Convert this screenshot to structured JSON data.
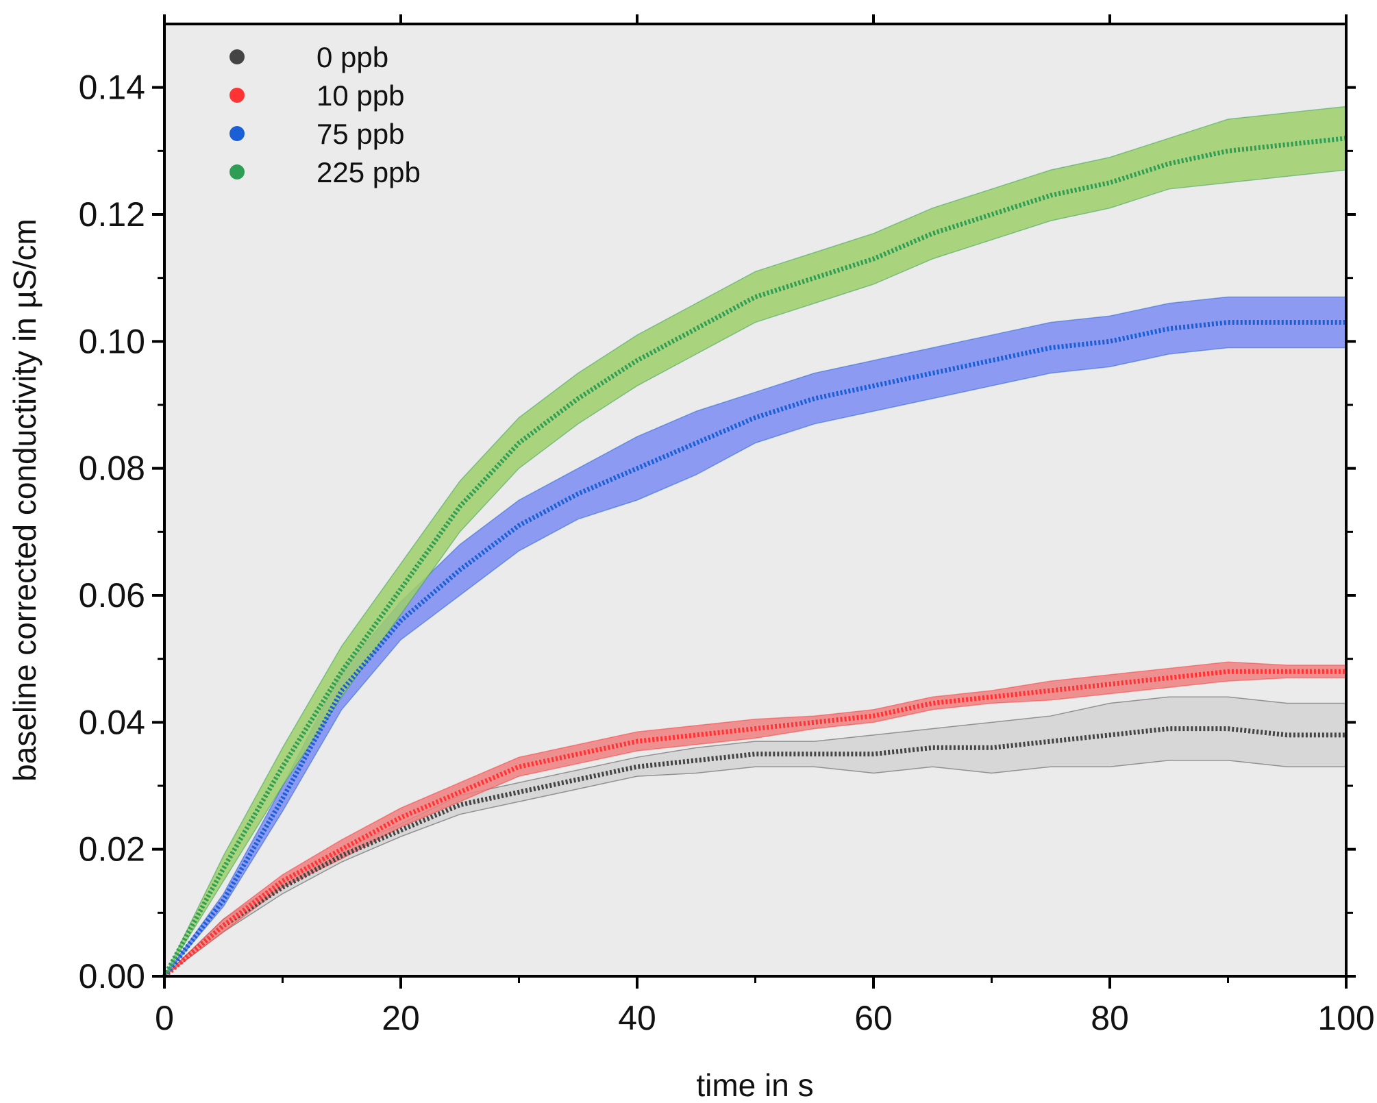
{
  "chart_data": {
    "type": "line",
    "xlabel": "time in s",
    "ylabel": "baseline corrected conductivity in µS/cm",
    "xlim": [
      0,
      100
    ],
    "ylim": [
      0,
      0.15
    ],
    "xticks": [
      0,
      20,
      40,
      60,
      80,
      100
    ],
    "xtick_labels": [
      "0",
      "20",
      "40",
      "60",
      "80",
      "100"
    ],
    "yticks": [
      0,
      0.02,
      0.04,
      0.06,
      0.08,
      0.1,
      0.12,
      0.14
    ],
    "ytick_labels": [
      "0.00",
      "0.02",
      "0.04",
      "0.06",
      "0.08",
      "0.10",
      "0.12",
      "0.14"
    ],
    "grid": false,
    "legend_position": "top-left",
    "series": [
      {
        "name": "0 ppb",
        "color": "#444444",
        "band_color": "#d3d3d3",
        "x": [
          0,
          5,
          10,
          15,
          20,
          25,
          30,
          35,
          40,
          45,
          50,
          55,
          60,
          65,
          70,
          75,
          80,
          85,
          90,
          95,
          100
        ],
        "y": [
          0.0,
          0.008,
          0.014,
          0.019,
          0.023,
          0.027,
          0.029,
          0.031,
          0.033,
          0.034,
          0.035,
          0.035,
          0.035,
          0.036,
          0.036,
          0.037,
          0.038,
          0.039,
          0.039,
          0.038,
          0.038
        ],
        "y_err": [
          0.0,
          0.001,
          0.001,
          0.001,
          0.001,
          0.0015,
          0.0015,
          0.0015,
          0.0015,
          0.002,
          0.002,
          0.002,
          0.003,
          0.003,
          0.004,
          0.004,
          0.005,
          0.005,
          0.005,
          0.005,
          0.005
        ]
      },
      {
        "name": "10 ppb",
        "color": "#ff3333",
        "band_color": "#f08080",
        "x": [
          0,
          5,
          10,
          15,
          20,
          25,
          30,
          35,
          40,
          45,
          50,
          55,
          60,
          65,
          70,
          75,
          80,
          85,
          90,
          95,
          100
        ],
        "y": [
          0.0,
          0.008,
          0.015,
          0.02,
          0.025,
          0.029,
          0.033,
          0.035,
          0.037,
          0.038,
          0.039,
          0.04,
          0.041,
          0.043,
          0.044,
          0.045,
          0.046,
          0.047,
          0.048,
          0.048,
          0.048
        ],
        "y_err": [
          0.0,
          0.001,
          0.001,
          0.0015,
          0.0015,
          0.0015,
          0.0015,
          0.0015,
          0.0015,
          0.0015,
          0.0015,
          0.001,
          0.001,
          0.001,
          0.001,
          0.0015,
          0.0015,
          0.0015,
          0.0015,
          0.001,
          0.001
        ]
      },
      {
        "name": "75 ppb",
        "color": "#1a5fd6",
        "band_color": "#7b8cf2",
        "x": [
          0,
          5,
          10,
          15,
          20,
          25,
          30,
          35,
          40,
          45,
          50,
          55,
          60,
          65,
          70,
          75,
          80,
          85,
          90,
          95,
          100
        ],
        "y": [
          0.0,
          0.012,
          0.028,
          0.045,
          0.056,
          0.064,
          0.071,
          0.076,
          0.08,
          0.084,
          0.088,
          0.091,
          0.093,
          0.095,
          0.097,
          0.099,
          0.1,
          0.102,
          0.103,
          0.103,
          0.103
        ],
        "y_err": [
          0.0,
          0.001,
          0.002,
          0.003,
          0.003,
          0.004,
          0.004,
          0.004,
          0.005,
          0.005,
          0.004,
          0.004,
          0.004,
          0.004,
          0.004,
          0.004,
          0.004,
          0.004,
          0.004,
          0.004,
          0.004
        ]
      },
      {
        "name": "225 ppb",
        "color": "#2e9e55",
        "band_color": "#9fcf6a",
        "x": [
          0,
          5,
          10,
          15,
          20,
          25,
          30,
          35,
          40,
          45,
          50,
          55,
          60,
          65,
          70,
          75,
          80,
          85,
          90,
          95,
          100
        ],
        "y": [
          0.0,
          0.017,
          0.033,
          0.048,
          0.061,
          0.074,
          0.084,
          0.091,
          0.097,
          0.102,
          0.107,
          0.11,
          0.113,
          0.117,
          0.12,
          0.123,
          0.125,
          0.128,
          0.13,
          0.131,
          0.132
        ],
        "y_err": [
          0.0,
          0.002,
          0.003,
          0.004,
          0.004,
          0.004,
          0.004,
          0.004,
          0.004,
          0.004,
          0.004,
          0.004,
          0.004,
          0.004,
          0.004,
          0.004,
          0.004,
          0.004,
          0.005,
          0.005,
          0.005
        ]
      }
    ]
  }
}
